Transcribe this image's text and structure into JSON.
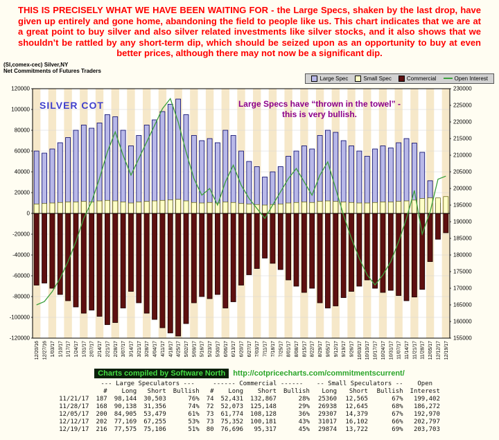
{
  "commentary": "THIS IS PRECISELY WHAT WE HAVE BEEN WAITING FOR - the Large Specs, shaken by the last drop, have given up entirely and gone home, abandoning the field to people like us. This chart indicates that we are at a great point to buy silver and also silver related investments like silver stocks, and it also shows that we shouldn’t be rattled by any short-term dip, which should be seized upon as an opportunity to buy at even better prices, although there may not now be a significant dip.",
  "chart": {
    "title_line1": "(SI,comex-cec) Silver,NY",
    "title_line2": "Net Commitments of Futures Traders",
    "legend": [
      {
        "label": "Large Spec",
        "color": "#b8b8e8",
        "type": "box"
      },
      {
        "label": "Small Spec",
        "color": "#ffffc8",
        "type": "box"
      },
      {
        "label": "Commercial",
        "color": "#5e1010",
        "type": "box"
      },
      {
        "label": "Open Interest",
        "color": "#3ca03c",
        "type": "line"
      }
    ],
    "annotation_silver_cot": "SILVER COT",
    "annotation_towel_line1": "Large Specs have “thrown in the towel” -",
    "annotation_towel_line2": "this is very bullish.",
    "footer_credit": "Charts compiled by Software North",
    "footer_url": "http://cotpricecharts.com/commitmentscurrent/"
  },
  "chart_data": {
    "type": "bar",
    "title": "Net Commitments of Futures Traders - (SI,comex-cec) Silver,NY",
    "categories": [
      "12/20/16",
      "12/27/16",
      "1/03/17",
      "1/10/17",
      "1/17/17",
      "1/24/17",
      "1/31/17",
      "2/07/17",
      "2/14/17",
      "2/21/17",
      "2/28/17",
      "3/07/17",
      "3/14/17",
      "3/21/17",
      "3/28/17",
      "4/04/17",
      "4/11/17",
      "4/18/17",
      "4/25/17",
      "5/02/17",
      "5/09/17",
      "5/16/17",
      "5/23/17",
      "5/30/17",
      "6/06/17",
      "6/13/17",
      "6/20/17",
      "6/27/17",
      "7/03/17",
      "7/11/17",
      "7/18/17",
      "7/25/17",
      "8/01/17",
      "8/08/17",
      "8/15/17",
      "8/22/17",
      "8/29/17",
      "9/05/17",
      "9/12/17",
      "9/19/17",
      "9/26/17",
      "10/03/17",
      "10/10/17",
      "10/17/17",
      "10/24/17",
      "10/31/17",
      "11/07/17",
      "11/14/17",
      "11/21/17",
      "11/28/17",
      "12/05/17",
      "12/12/17",
      "12/19/17"
    ],
    "series": [
      {
        "name": "Large Spec",
        "axis": "left",
        "values": [
          60000,
          58000,
          62000,
          68000,
          73000,
          80000,
          85000,
          82000,
          87000,
          95000,
          93000,
          80000,
          65000,
          75000,
          85000,
          90000,
          98000,
          105000,
          110000,
          95000,
          75000,
          70000,
          72000,
          68000,
          80000,
          75000,
          60000,
          50000,
          45000,
          35000,
          40000,
          45000,
          55000,
          60000,
          65000,
          62000,
          75000,
          80000,
          78000,
          70000,
          65000,
          60000,
          55000,
          62000,
          65000,
          63000,
          68000,
          72000,
          67641,
          58782,
          31426,
          9914,
          2469
        ]
      },
      {
        "name": "Small Spec",
        "axis": "left",
        "values": [
          9000,
          9500,
          10000,
          10500,
          11000,
          11000,
          11500,
          11000,
          12000,
          12500,
          12000,
          11000,
          10000,
          11000,
          11500,
          12000,
          12500,
          13000,
          13500,
          12000,
          10500,
          10000,
          10500,
          10000,
          11000,
          10500,
          9500,
          9000,
          8500,
          8000,
          8500,
          9000,
          10000,
          10500,
          11000,
          10500,
          11500,
          12000,
          11500,
          11000,
          10500,
          10000,
          10000,
          10500,
          11000,
          11000,
          11500,
          12000,
          12795,
          14293,
          14928,
          14915,
          16152
        ]
      },
      {
        "name": "Commercial",
        "axis": "left",
        "values": [
          -69000,
          -67000,
          -72000,
          -78000,
          -84000,
          -90000,
          -96000,
          -93000,
          -99000,
          -107000,
          -105000,
          -91000,
          -75000,
          -86000,
          -96000,
          -102000,
          -110000,
          -115000,
          -118000,
          -106000,
          -86000,
          -80000,
          -82000,
          -78000,
          -91000,
          -85000,
          -69000,
          -59000,
          -53000,
          -43000,
          -48000,
          -54000,
          -64000,
          -70000,
          -76000,
          -72000,
          -86000,
          -91000,
          -89000,
          -81000,
          -75000,
          -70000,
          -64000,
          -72000,
          -76000,
          -74000,
          -79000,
          -84000,
          -80436,
          -73075,
          -46354,
          -24829,
          -18621
        ]
      },
      {
        "name": "Open Interest",
        "axis": "right",
        "values": [
          165000,
          166000,
          169000,
          173000,
          178000,
          184000,
          191000,
          196000,
          203000,
          211000,
          217000,
          210000,
          204000,
          209000,
          214000,
          219000,
          224000,
          227000,
          220000,
          211000,
          203000,
          198000,
          200000,
          195000,
          202000,
          207000,
          201000,
          197000,
          194000,
          191000,
          195000,
          199000,
          203000,
          206000,
          202000,
          198000,
          204000,
          208000,
          200000,
          192000,
          185000,
          179000,
          174000,
          171000,
          174000,
          178000,
          184000,
          191000,
          199402,
          186272,
          192970,
          202797,
          203703
        ]
      }
    ],
    "left_axis": {
      "min": -120000,
      "max": 120000,
      "tick": 20000
    },
    "right_axis": {
      "min": 155000,
      "max": 230000,
      "tick": 5000
    },
    "legend_position": "top-right",
    "grid": true,
    "colors": {
      "large_spec": "#b8b8e8",
      "large_spec_border": "#000066",
      "small_spec": "#ffffc8",
      "small_spec_border": "#5a5a00",
      "commercial": "#5e1010",
      "commercial_border": "#1a0000",
      "open_interest": "#3ca03c",
      "stripe": "#f6e8c9",
      "grid": "#d4d4d4"
    }
  },
  "table": {
    "group_headers": [
      "--- Large Speculators ---",
      "------ Commercial ------",
      "-- Small Speculators --",
      "Open"
    ],
    "col_headers": [
      "",
      "#",
      "Long",
      "Short",
      "Bullish",
      "#",
      "Long",
      "Short",
      "Bullish",
      "Long",
      "Short",
      "Bullish",
      "Interest"
    ],
    "rows": [
      [
        "11/21/17",
        "187",
        "98,144",
        "30,503",
        "76%",
        "74",
        "52,431",
        "132,867",
        "28%",
        "25360",
        "12,565",
        "67%",
        "199,402"
      ],
      [
        "11/28/17",
        "168",
        "90,138",
        "31,356",
        "74%",
        "72",
        "52,073",
        "125,148",
        "29%",
        "26938",
        "12,645",
        "68%",
        "186,272"
      ],
      [
        "12/05/17",
        "200",
        "84,905",
        "53,479",
        "61%",
        "73",
        "61,774",
        "108,128",
        "36%",
        "29307",
        "14,379",
        "67%",
        "192,970"
      ],
      [
        "12/12/17",
        "202",
        "77,169",
        "67,255",
        "53%",
        "73",
        "75,352",
        "100,181",
        "43%",
        "31017",
        "16,102",
        "66%",
        "202,797"
      ],
      [
        "12/19/17",
        "216",
        "77,575",
        "75,106",
        "51%",
        "80",
        "76,696",
        "95,317",
        "45%",
        "29874",
        "13,722",
        "69%",
        "203,703"
      ]
    ]
  }
}
